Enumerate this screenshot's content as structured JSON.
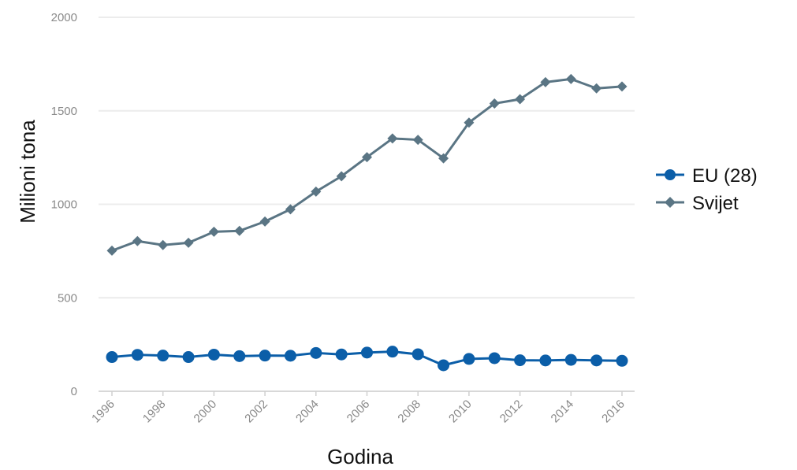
{
  "chart_data": {
    "type": "line",
    "title": "",
    "xlabel": "Godina",
    "ylabel": "Milioni tona",
    "ylim": [
      0,
      2000
    ],
    "yticks": [
      0,
      500,
      1000,
      1500,
      2000
    ],
    "xlim": [
      1996,
      2016
    ],
    "xticks": [
      1996,
      1998,
      2000,
      2002,
      2004,
      2006,
      2008,
      2010,
      2012,
      2014,
      2016
    ],
    "x": [
      1996,
      1997,
      1998,
      1999,
      2000,
      2001,
      2002,
      2003,
      2004,
      2005,
      2006,
      2007,
      2008,
      2009,
      2010,
      2011,
      2012,
      2013,
      2014,
      2015,
      2016
    ],
    "grid": true,
    "legend_position": "right",
    "series": [
      {
        "name": "EU (28)",
        "color": "#0b5ea8",
        "marker": "circle",
        "values": [
          183,
          195,
          191,
          183,
          196,
          188,
          191,
          190,
          205,
          197,
          207,
          212,
          198,
          139,
          173,
          177,
          166,
          165,
          168,
          165,
          163
        ]
      },
      {
        "name": "Svijet",
        "color": "#5a7584",
        "marker": "diamond",
        "values": [
          752,
          803,
          782,
          794,
          853,
          858,
          908,
          973,
          1068,
          1150,
          1252,
          1352,
          1345,
          1246,
          1437,
          1539,
          1562,
          1653,
          1670,
          1620,
          1630
        ]
      }
    ]
  }
}
